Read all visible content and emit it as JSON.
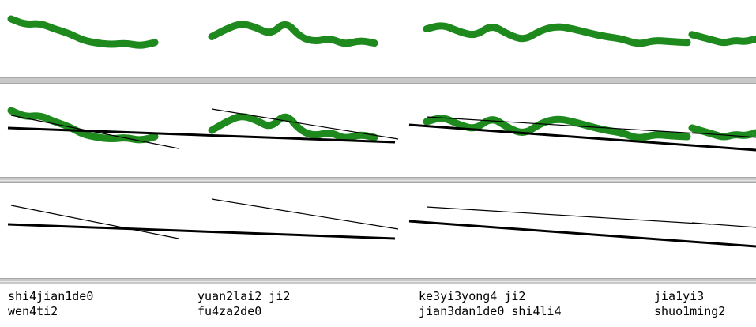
{
  "colors": {
    "pitch_contour": "#1e8a1e",
    "fitted_line": "#000000",
    "divider": "#c8c8c8",
    "background": "#ffffff"
  },
  "segments": [
    {
      "name": "segment-1",
      "label_line1": "shi4jian1de0",
      "label_line2": "wen4ti2",
      "contour_y": [
        0.8,
        0.72,
        0.74,
        0.66,
        0.6,
        0.5,
        0.46,
        0.44,
        0.46,
        0.42,
        0.47
      ],
      "trend_start": 0.8,
      "trend_end": 0.42,
      "local_start": 0.74,
      "local_end": 0.32
    },
    {
      "name": "segment-2",
      "label_line1": "yuan2lai2  ji2",
      "label_line2": "fu4za2de0",
      "contour_y": [
        0.55,
        0.66,
        0.74,
        0.68,
        0.58,
        0.77,
        0.54,
        0.48,
        0.53,
        0.44,
        0.5,
        0.46
      ],
      "trend_start": 0.68,
      "trend_end": 0.46,
      "local_start": 0.82,
      "local_end": 0.44
    },
    {
      "name": "segment-3",
      "label_line1": "ke3yi3yong4  ji2",
      "label_line2": "jian3dan1de0  shi4li4",
      "contour_y": [
        0.66,
        0.72,
        0.62,
        0.56,
        0.72,
        0.58,
        0.5,
        0.64,
        0.7,
        0.66,
        0.6,
        0.55,
        0.52,
        0.44,
        0.5,
        0.48,
        0.47
      ],
      "trend_start": 0.74,
      "trend_end": 0.42,
      "local_start": 0.72,
      "local_end": 0.5
    },
    {
      "name": "segment-4",
      "label_line1": "jia1yi3",
      "label_line2": "shuo1ming2",
      "contour_y": [
        0.58,
        0.54,
        0.5,
        0.46,
        0.5,
        0.48,
        0.52
      ],
      "trend_start": 0.5,
      "trend_end": 0.4,
      "local_start": 0.52,
      "local_end": 0.44
    }
  ]
}
